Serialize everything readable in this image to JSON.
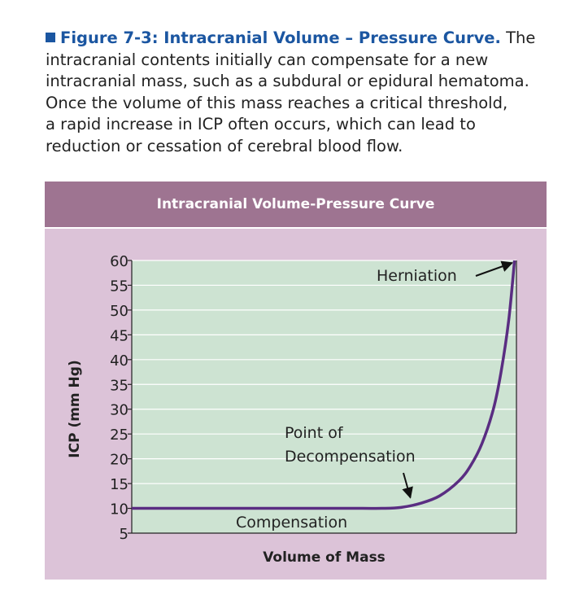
{
  "caption": {
    "figure_label": "Figure 7-3: Intracranial Volume – Pressure Curve.",
    "lines": [
      " The",
      "intracranial contents initially can compensate for a new",
      "intracranial mass, such as a subdural or epidural hematoma.",
      "Once the volume of this mass reaches a critical threshold,",
      "a rapid increase in ICP often occurs, which can lead to",
      "reduction or cessation of cerebral blood flow."
    ]
  },
  "colors": {
    "figure_label": "#1b56a1",
    "panel_bg": "#dcc3d8",
    "header_bg": "#9e7491",
    "plot_bg": "#cde3d2",
    "curve": "#5a2d82"
  },
  "chart_data": {
    "type": "line",
    "title": "Intracranial Volume-Pressure Curve",
    "xlabel": "Volume of Mass",
    "ylabel": "ICP (mm Hg)",
    "x_tick_labels": false,
    "ylim": [
      5,
      60
    ],
    "yticks": [
      60,
      55,
      50,
      45,
      40,
      35,
      30,
      25,
      20,
      15,
      10,
      5
    ],
    "grid": true,
    "series": [
      {
        "x": [
          0,
          10,
          20,
          30,
          40,
          50,
          60,
          65,
          70,
          75,
          80,
          85,
          88,
          91,
          94,
          96,
          98,
          99.5
        ],
        "values": [
          10,
          10,
          10,
          10,
          10,
          10,
          10,
          10,
          10.2,
          11,
          12.5,
          15.5,
          18.5,
          23,
          30,
          37.5,
          48,
          60
        ]
      }
    ],
    "annotations": [
      {
        "text": "Herniation",
        "arrow_to": [
          99.5,
          60
        ]
      },
      {
        "text": "Point of",
        "text2": "Decompensation",
        "arrow_to": [
          72,
          11.5
        ]
      },
      {
        "text": "Compensation"
      }
    ]
  }
}
